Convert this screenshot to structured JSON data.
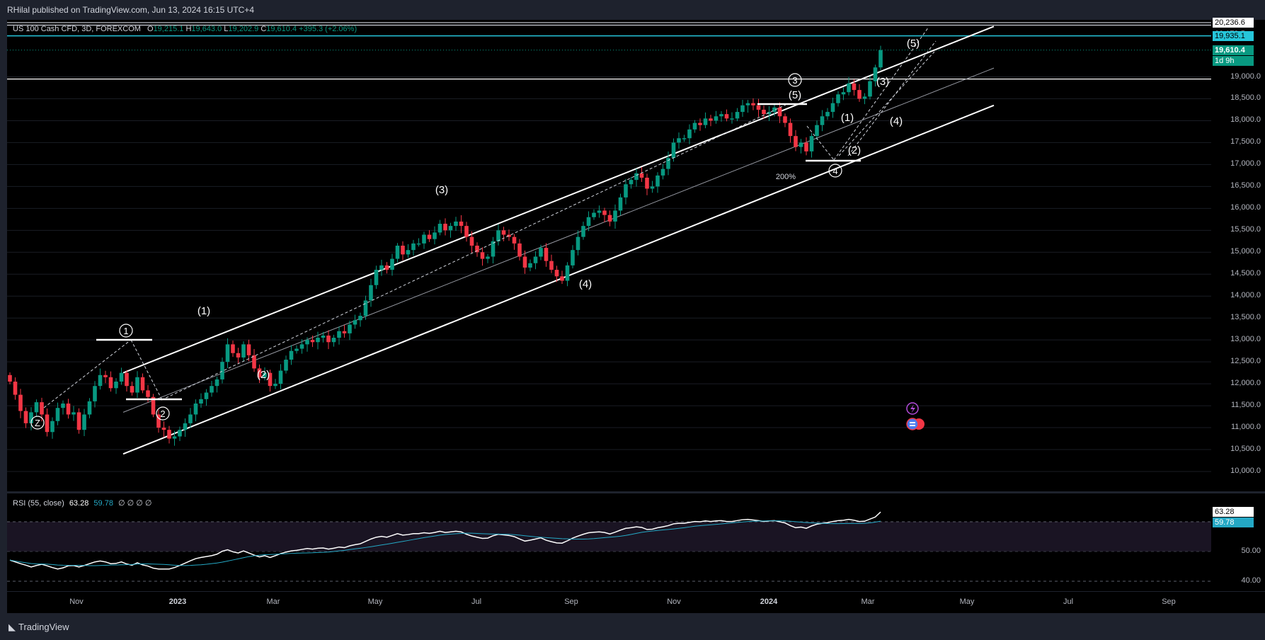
{
  "header": {
    "publisher": "RHilal published on TradingView.com, Jun 13, 2024 16:15 UTC+4"
  },
  "legend": {
    "symbol": "US 100 Cash CFD, 3D, FOREXCOM",
    "open_label": "O",
    "open": "19,215.1",
    "high_label": "H",
    "high": "19,643.0",
    "low_label": "L",
    "low": "19,202.9",
    "close_label": "C",
    "close": "19,610.4",
    "change": "+395.3 (+2.06%)"
  },
  "rsi_legend": {
    "title": "RSI (55, close)",
    "value": "63.28",
    "ma": "59.78",
    "extra": "∅ ∅ ∅ ∅"
  },
  "price_axis": [
    "19,000.0",
    "18,500.0",
    "18,000.0",
    "17,500.0",
    "17,000.0",
    "16,500.0",
    "16,000.0",
    "15,500.0",
    "15,000.0",
    "14,500.0",
    "14,000.0",
    "13,500.0",
    "13,000.0",
    "12,500.0",
    "12,000.0",
    "11,500.0",
    "11,000.0",
    "10,500.0",
    "10,000.0"
  ],
  "price_tags": {
    "t1": "20,236.6",
    "t2": "20,179.5",
    "t3": "19,935.1",
    "last_price": "19,610.4",
    "countdown": "1d 9h"
  },
  "rsi_axis": [
    "50.00",
    "40.00"
  ],
  "rsi_tags": {
    "rsi": "63.28",
    "ma": "59.78"
  },
  "time_axis": [
    "Nov",
    "2023",
    "Mar",
    "May",
    "Jul",
    "Sep",
    "Nov",
    "2024",
    "Mar",
    "May",
    "Jul",
    "Sep"
  ],
  "annotations": {
    "z": "Z",
    "c1": "1",
    "c2": "2",
    "c3": "3",
    "c4": "4",
    "w1a": "(1)",
    "w2a": "(2)",
    "w3a": "(3)",
    "w4a": "(4)",
    "w5a": "(5)",
    "w1b": "(1)",
    "w2b": "(2)",
    "w3b": "(3)",
    "w4b": "(4)",
    "w5b": "(5)",
    "fib": "200%"
  },
  "footer": {
    "brand": "TradingView",
    "logo": "tradingview-logo"
  },
  "colors": {
    "up": "#089981",
    "down": "#f23645",
    "rsi": "#ffffff",
    "rsi_ma": "#24a8c5",
    "level": "#26c6da",
    "background": "#000000"
  },
  "chart_data": {
    "type": "candlestick",
    "symbol": "US 100 Cash CFD",
    "timeframe": "3D",
    "last": {
      "open": 19215.1,
      "high": 19643.0,
      "low": 19202.9,
      "close": 19610.4,
      "change": 395.3,
      "change_pct": 2.06
    },
    "y_range": [
      9900,
      20300
    ],
    "closes": [
      12050,
      11750,
      11380,
      11100,
      11350,
      11580,
      11300,
      10900,
      11150,
      11450,
      11550,
      11300,
      11350,
      10950,
      11300,
      11600,
      11950,
      12200,
      12150,
      11900,
      12050,
      12250,
      11950,
      11800,
      12150,
      11850,
      11700,
      11300,
      11000,
      10950,
      10750,
      10800,
      10950,
      11100,
      11300,
      11550,
      11650,
      11800,
      11950,
      12100,
      12500,
      12900,
      12700,
      12600,
      12900,
      12650,
      12350,
      12150,
      12250,
      11950,
      12000,
      12300,
      12550,
      12750,
      12800,
      12900,
      13000,
      12950,
      13050,
      13100,
      12950,
      13050,
      13200,
      13150,
      13350,
      13450,
      13550,
      13900,
      14250,
      14600,
      14700,
      14600,
      14850,
      15150,
      14950,
      15050,
      15200,
      15200,
      15400,
      15300,
      15450,
      15650,
      15500,
      15600,
      15700,
      15600,
      15350,
      15150,
      15000,
      14850,
      14900,
      15250,
      15500,
      15400,
      15350,
      15200,
      14900,
      14650,
      14750,
      14900,
      15100,
      14800,
      14600,
      14450,
      14350,
      14700,
      15050,
      15350,
      15600,
      15800,
      15900,
      15950,
      15850,
      15700,
      15950,
      16250,
      16550,
      16650,
      16800,
      16700,
      16450,
      16500,
      16750,
      16900,
      17150,
      17500,
      17600,
      17600,
      17800,
      17950,
      17900,
      18050,
      18000,
      18100,
      18150,
      18050,
      18050,
      18200,
      18350,
      18400,
      18350,
      18250,
      18150,
      18200,
      18300,
      18100,
      17950,
      17650,
      17400,
      17500,
      17300,
      17650,
      17900,
      18100,
      18200,
      18400,
      18600,
      18650,
      18850,
      18700,
      18500,
      18550,
      18900,
      19215,
      19610
    ],
    "channel": {
      "upper": [
        [
          0,
          12250
        ],
        [
          164,
          20150
        ]
      ],
      "lower": [
        [
          0,
          10400
        ],
        [
          164,
          18350
        ]
      ],
      "median": [
        [
          0,
          11350
        ],
        [
          164,
          19200
        ]
      ]
    },
    "horizontal_levels": [
      20236.6,
      20179.5,
      19935.1,
      18950
    ],
    "rsi": {
      "period": 55,
      "source": "close",
      "value": 63.28,
      "ma": 59.78,
      "y_range": [
        38,
        66
      ],
      "values": [
        47.1,
        46.5,
        45.9,
        45.4,
        44.8,
        45.3,
        45.7,
        45.2,
        44.6,
        44.1,
        44.5,
        45.2,
        45.3,
        44.8,
        45.3,
        45.9,
        46.5,
        46.8,
        46.5,
        45.9,
        46.0,
        46.5,
        45.8,
        45.4,
        46.2,
        45.5,
        45.1,
        44.4,
        44.1,
        44.1,
        44.1,
        44.6,
        45.3,
        46.1,
        46.9,
        47.6,
        48.0,
        48.3,
        48.6,
        49.1,
        50.1,
        50.6,
        49.9,
        49.5,
        50.2,
        49.5,
        48.8,
        48.2,
        48.6,
        48.0,
        48.6,
        49.3,
        49.8,
        50.2,
        50.4,
        50.7,
        51.0,
        50.8,
        51.1,
        51.2,
        50.8,
        51.1,
        51.5,
        51.3,
        51.9,
        52.3,
        52.6,
        53.4,
        54.2,
        54.8,
        55.1,
        54.8,
        55.4,
        56.0,
        55.5,
        55.7,
        56.0,
        56.0,
        56.3,
        56.1,
        56.4,
        56.8,
        56.4,
        56.6,
        56.8,
        56.6,
        55.8,
        55.2,
        54.8,
        54.4,
        54.5,
        55.3,
        55.8,
        55.6,
        55.4,
        55.0,
        54.2,
        53.5,
        53.8,
        54.2,
        54.6,
        53.8,
        53.3,
        52.9,
        52.8,
        53.6,
        54.5,
        55.2,
        55.8,
        56.3,
        56.5,
        56.6,
        56.4,
        55.9,
        56.5,
        57.2,
        57.8,
        58.0,
        58.3,
        58.1,
        57.4,
        57.5,
        58.0,
        58.3,
        58.7,
        59.3,
        59.5,
        59.5,
        59.8,
        60.1,
        60.0,
        60.3,
        60.1,
        60.3,
        60.4,
        60.1,
        60.1,
        60.4,
        60.7,
        60.8,
        60.6,
        60.4,
        60.1,
        60.3,
        60.4,
        60.0,
        59.6,
        58.7,
        58.0,
        58.2,
        57.8,
        58.6,
        59.2,
        59.5,
        59.7,
        60.1,
        60.4,
        60.5,
        60.8,
        60.5,
        60.1,
        60.2,
        60.9,
        61.6,
        63.28
      ]
    }
  }
}
